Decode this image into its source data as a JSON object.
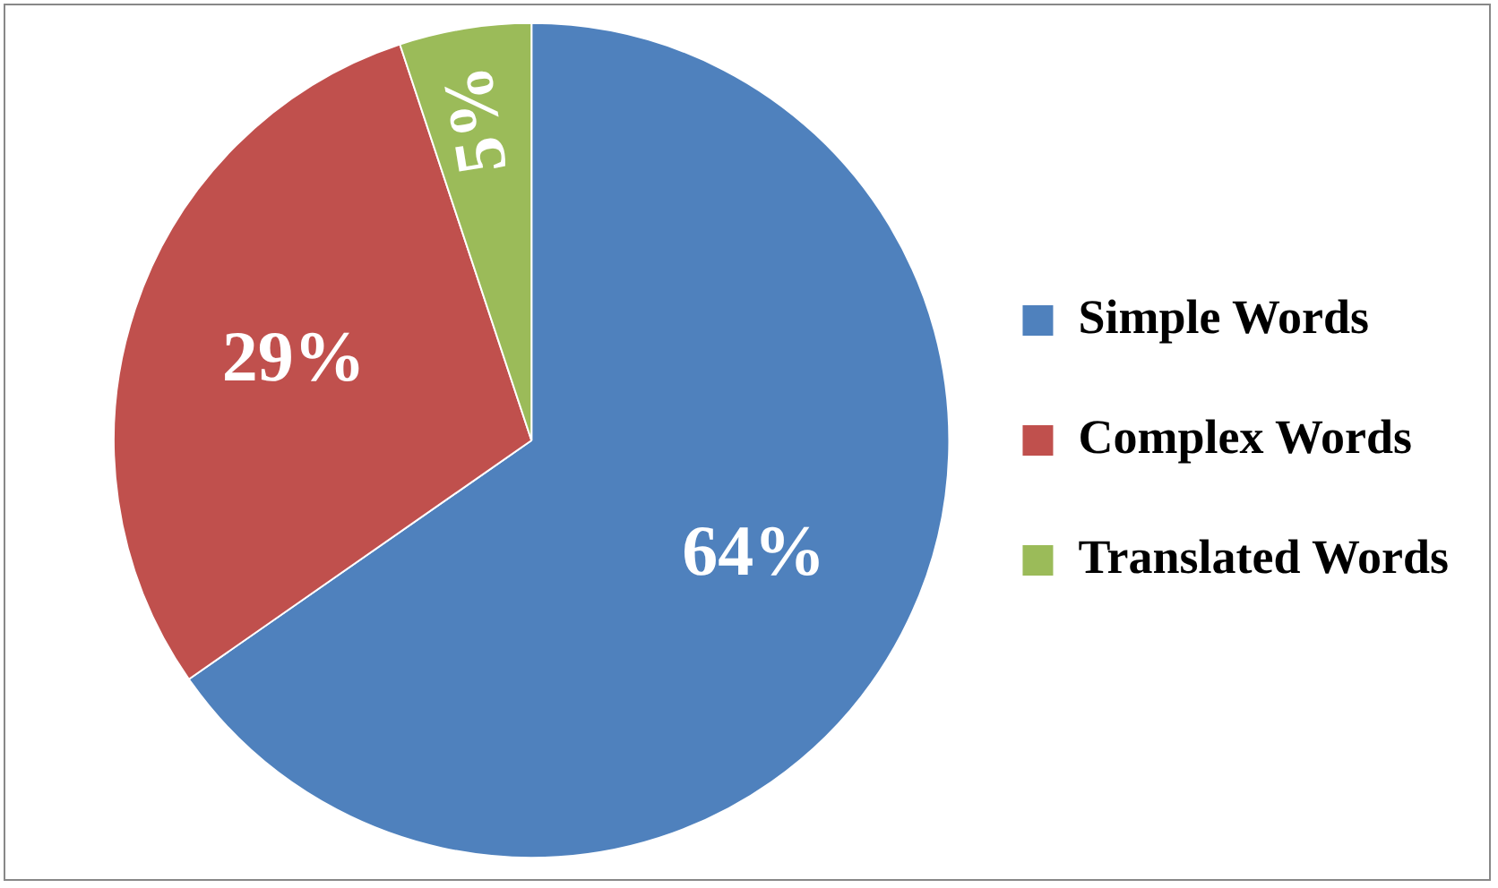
{
  "chart_data": {
    "type": "pie",
    "categories": [
      "Simple Words",
      "Complex Words",
      "Translated Words"
    ],
    "values": [
      64,
      29,
      5
    ],
    "colors": [
      "#4f81bd",
      "#c0504d",
      "#9bbb59"
    ],
    "value_labels": [
      "64%",
      "29%",
      "5%"
    ],
    "legend": "right"
  }
}
